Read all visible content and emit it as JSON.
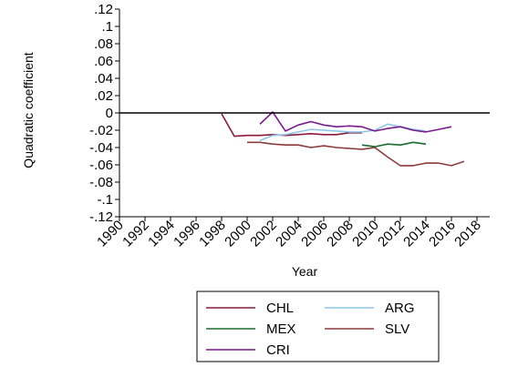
{
  "chart_data": {
    "type": "line",
    "title": "",
    "xlabel": "Year",
    "ylabel": "Quadratic coefficient",
    "xlim": [
      1990,
      2019
    ],
    "ylim": [
      -0.12,
      0.12
    ],
    "x_ticks": [
      1990,
      1992,
      1994,
      1996,
      1998,
      2000,
      2002,
      2004,
      2006,
      2008,
      2010,
      2012,
      2014,
      2016,
      2018
    ],
    "y_ticks": [
      ".12",
      ".1",
      ".08",
      ".06",
      ".04",
      ".02",
      "0",
      "-.02",
      "-.04",
      "-.06",
      "-.08",
      "-.1",
      "-.12"
    ],
    "y_tick_values": [
      0.12,
      0.1,
      0.08,
      0.06,
      0.04,
      0.02,
      0,
      -0.02,
      -0.04,
      -0.06,
      -0.08,
      -0.1,
      -0.12
    ],
    "reference_line": 0,
    "grid": false,
    "legend_position": "bottom",
    "series": [
      {
        "name": "CHL",
        "color": "#8B1A3C",
        "x": [
          1998,
          1999,
          2000,
          2001,
          2002,
          2003,
          2004,
          2005,
          2006,
          2007,
          2008,
          2009
        ],
        "y": [
          -0.001,
          -0.027,
          -0.026,
          -0.026,
          -0.025,
          -0.026,
          -0.025,
          -0.024,
          -0.025,
          -0.025,
          -0.023,
          -0.023
        ]
      },
      {
        "name": "ARG",
        "color": "#8EC6E8",
        "x": [
          2001,
          2002,
          2003,
          2004,
          2005,
          2006,
          2007,
          2008,
          2009,
          2010,
          2011,
          2012,
          2013,
          2014
        ],
        "y": [
          -0.032,
          -0.026,
          -0.025,
          -0.022,
          -0.019,
          -0.02,
          -0.021,
          -0.022,
          -0.022,
          -0.02,
          -0.013,
          -0.016,
          -0.019,
          -0.021
        ]
      },
      {
        "name": "MEX",
        "color": "#1B6B2E",
        "x": [
          2009,
          2010,
          2011,
          2012,
          2013,
          2014
        ],
        "y": [
          -0.037,
          -0.039,
          -0.036,
          -0.037,
          -0.034,
          -0.036
        ]
      },
      {
        "name": "SLV",
        "color": "#8C3B3B",
        "x": [
          2000,
          2001,
          2002,
          2003,
          2004,
          2005,
          2006,
          2007,
          2008,
          2009,
          2010,
          2011,
          2012,
          2013,
          2014,
          2015,
          2016,
          2017
        ],
        "y": [
          -0.034,
          -0.034,
          -0.036,
          -0.037,
          -0.037,
          -0.04,
          -0.038,
          -0.04,
          -0.041,
          -0.042,
          -0.04,
          -0.051,
          -0.061,
          -0.061,
          -0.058,
          -0.058,
          -0.061,
          -0.056
        ]
      },
      {
        "name": "CRI",
        "color": "#7A1A8C",
        "x": [
          2001,
          2002,
          2003,
          2004,
          2005,
          2006,
          2007,
          2008,
          2009,
          2010,
          2011,
          2012,
          2013,
          2014,
          2015,
          2016
        ],
        "y": [
          -0.013,
          0.001,
          -0.021,
          -0.014,
          -0.01,
          -0.014,
          -0.016,
          -0.015,
          -0.016,
          -0.021,
          -0.018,
          -0.016,
          -0.02,
          -0.022,
          -0.019,
          -0.016
        ]
      }
    ],
    "legend_order": [
      "CHL",
      "ARG",
      "MEX",
      "SLV",
      "CRI"
    ]
  }
}
